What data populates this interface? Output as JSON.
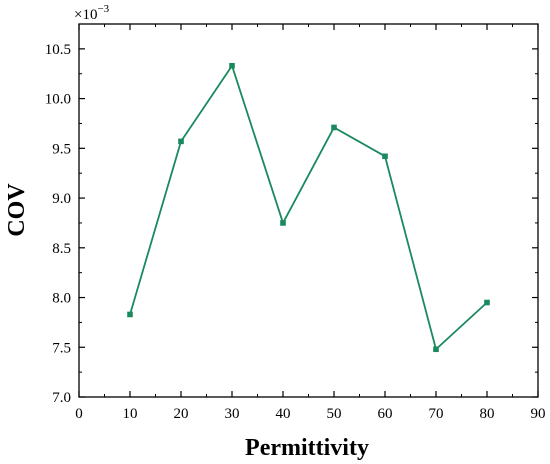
{
  "chart_data": {
    "type": "line",
    "xlabel": "Permittivity",
    "ylabel": "COV",
    "y_scale_multiplier": "×10",
    "y_scale_exponent": "−3",
    "xlim": [
      0,
      90
    ],
    "ylim": [
      7.0,
      10.75
    ],
    "x_ticks": [
      0,
      10,
      20,
      30,
      40,
      50,
      60,
      70,
      80,
      90
    ],
    "y_ticks": [
      7.0,
      7.5,
      8.0,
      8.5,
      9.0,
      9.5,
      10.0,
      10.5
    ],
    "x_tick_labels": [
      "0",
      "10",
      "20",
      "30",
      "40",
      "50",
      "60",
      "70",
      "80",
      "90"
    ],
    "y_tick_labels": [
      "7.0",
      "7.5",
      "8.0",
      "8.5",
      "9.0",
      "9.5",
      "10.0",
      "10.5"
    ],
    "grid": false,
    "series": [
      {
        "color": "#1a8a5e",
        "marker": "square",
        "x": [
          10,
          20,
          30,
          40,
          50,
          60,
          70,
          80
        ],
        "y": [
          7.83,
          9.57,
          10.33,
          8.75,
          9.71,
          9.42,
          7.48,
          7.95
        ]
      }
    ]
  }
}
